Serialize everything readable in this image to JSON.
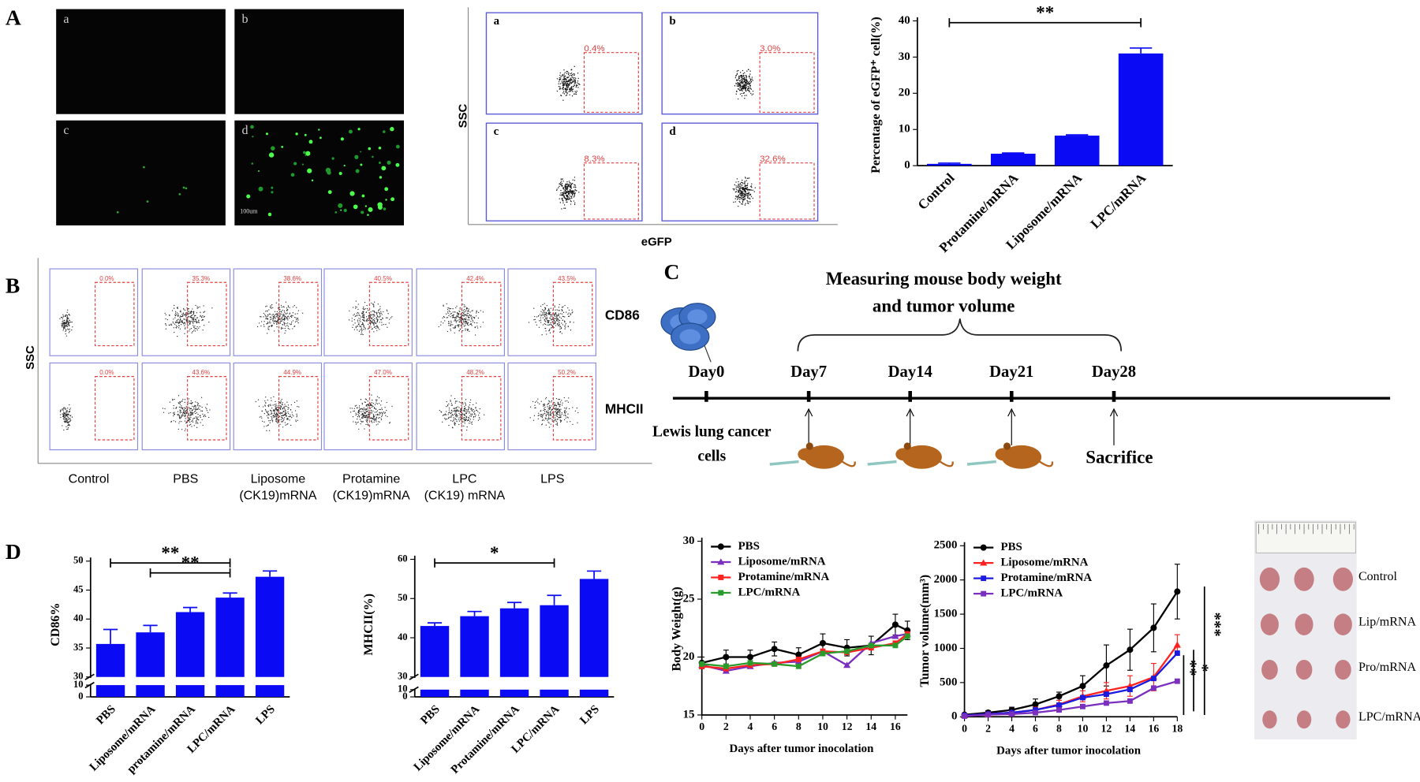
{
  "panel_labels": [
    "A",
    "B",
    "C",
    "D"
  ],
  "panel_a": {
    "micrograph_labels": [
      "a",
      "b",
      "c",
      "d"
    ],
    "scale_bar": "100um",
    "flow_labels": [
      "a",
      "b",
      "c",
      "d"
    ],
    "flow_percentages": [
      "0.4%",
      "3.0%",
      "8.3%",
      "32.6%"
    ],
    "flow_y_label": "SSC",
    "flow_x_label": "eGFP"
  },
  "panel_b": {
    "row_labels": [
      "CD86",
      "MHCII"
    ],
    "y_label": "SSC",
    "column_labels": [
      [
        "Control"
      ],
      [
        "PBS"
      ],
      [
        "Liposome",
        "(CK19)mRNA"
      ],
      [
        "Protamine",
        "(CK19)mRNA"
      ],
      [
        "LPC",
        "(CK19) mRNA"
      ],
      [
        "LPS"
      ]
    ],
    "percentages": [
      [
        "0.0%",
        "35.3%",
        "38.6%",
        "40.5%",
        "42.4%",
        "43.5%"
      ],
      [
        "0.0%",
        "43.6%",
        "44.9%",
        "47.0%",
        "48.2%",
        "50.2%"
      ]
    ]
  },
  "panel_c": {
    "title": [
      "Measuring mouse body weight",
      "and tumor volume"
    ],
    "days": [
      "Day0",
      "Day7",
      "Day14",
      "Day21",
      "Day28"
    ],
    "cells_label": [
      "Lewis lung cancer",
      "cells"
    ],
    "end_label": "Sacrifice"
  },
  "photo": {
    "row_labels": [
      "Control",
      "Lip/mRNA",
      "Pro/mRNA",
      "LPC/mRNA"
    ]
  },
  "chart_data": [
    {
      "type": "bar",
      "y_label": "Percentage of eGFP⁺ cell(%)",
      "categories": [
        "Control",
        "Protamine/mRNA",
        "Liposome/mRNA",
        "LPC/mRNA"
      ],
      "values": [
        0.5,
        3.3,
        8.3,
        31
      ],
      "errors": [
        0.2,
        0.2,
        0.2,
        1.5
      ],
      "color": "#0a0af5",
      "ylim": [
        0,
        40
      ],
      "yticks": [
        0,
        10,
        20,
        30,
        40
      ],
      "significance": [
        {
          "label": "**",
          "between": [
            "Control",
            "LPC/mRNA"
          ]
        }
      ]
    },
    {
      "type": "bar",
      "y_label": "CD86%",
      "categories": [
        "PBS",
        "Liposome/mRNA",
        "protamine/mRNA",
        "LPC/mRNA",
        "LPS"
      ],
      "values": [
        35.7,
        37.7,
        41.2,
        43.7,
        47.3
      ],
      "errors": [
        2.5,
        1.2,
        0.8,
        0.8,
        1
      ],
      "color": "#0a0af5",
      "ylim": [
        0,
        50
      ],
      "axis_break": [
        10,
        30
      ],
      "yticks": [
        0,
        10,
        30,
        35,
        40,
        45,
        50
      ],
      "significance": [
        {
          "label": "**",
          "between": [
            "PBS",
            "LPC/mRNA"
          ]
        },
        {
          "label": "**",
          "between": [
            "Liposome/mRNA",
            "LPC/mRNA"
          ]
        }
      ]
    },
    {
      "type": "bar",
      "y_label": "MHCII(%)",
      "categories": [
        "PBS",
        "Liposome/mRNA",
        "Protamine/mRNA",
        "LPC/mRNA",
        "LPS"
      ],
      "values": [
        43,
        45.5,
        47.5,
        48.3,
        55
      ],
      "errors": [
        0.8,
        1.2,
        1.5,
        2.5,
        2
      ],
      "color": "#0a0af5",
      "ylim": [
        0,
        60
      ],
      "axis_break": [
        10,
        30
      ],
      "yticks": [
        0,
        10,
        30,
        40,
        50,
        60
      ],
      "significance": [
        {
          "label": "*",
          "between": [
            "PBS",
            "LPC/mRNA"
          ]
        }
      ]
    },
    {
      "type": "line",
      "y_label": "Body Weight(g)",
      "x_label": "Days after tumor inocolation",
      "x": [
        0,
        2,
        4,
        6,
        8,
        10,
        12,
        14,
        16,
        17
      ],
      "xlim": [
        0,
        17
      ],
      "xticks": [
        0,
        2,
        4,
        6,
        8,
        10,
        12,
        14,
        16
      ],
      "ylim": [
        15,
        30
      ],
      "yticks": [
        15,
        20,
        25,
        30
      ],
      "series": [
        {
          "name": "PBS",
          "color": "#000000",
          "values": [
            19.5,
            20,
            20,
            20.7,
            20.2,
            21.2,
            20.8,
            21,
            22.8,
            22.3
          ],
          "errors": [
            0.5,
            0.6,
            0.6,
            0.6,
            0.6,
            0.8,
            0.7,
            0.8,
            0.9,
            0.8
          ]
        },
        {
          "name": "Liposome/mRNA",
          "color": "#7b2fbe",
          "values": [
            19.3,
            18.8,
            19.2,
            19.5,
            19.6,
            20.5,
            19.3,
            21.2,
            21.8,
            22
          ]
        },
        {
          "name": "Protamine/mRNA",
          "color": "#ff2020",
          "values": [
            19.2,
            19,
            19.3,
            19.4,
            19.8,
            20.5,
            20.4,
            20.8,
            21.2,
            22
          ]
        },
        {
          "name": "LPC/mRNA",
          "color": "#2a9a2a",
          "values": [
            19.4,
            19.2,
            19.5,
            19.4,
            19.2,
            20.3,
            20.5,
            21,
            21,
            21.8
          ]
        }
      ]
    },
    {
      "type": "line",
      "y_label": "Tumor volume(mm³)",
      "x_label": "Days after tumor inocolation",
      "x": [
        0,
        2,
        4,
        6,
        8,
        10,
        12,
        14,
        16,
        18
      ],
      "xlim": [
        0,
        18
      ],
      "xticks": [
        0,
        2,
        4,
        6,
        8,
        10,
        12,
        14,
        16,
        18
      ],
      "ylim": [
        0,
        2500
      ],
      "yticks": [
        0,
        500,
        1000,
        1500,
        2000,
        2500
      ],
      "series": [
        {
          "name": "PBS",
          "color": "#000000",
          "values": [
            30,
            60,
            100,
            180,
            300,
            450,
            750,
            980,
            1300,
            1830
          ],
          "errors": [
            20,
            30,
            40,
            80,
            60,
            150,
            300,
            300,
            350,
            400
          ]
        },
        {
          "name": "Liposome/mRNA",
          "color": "#ff2020",
          "values": [
            20,
            40,
            60,
            100,
            180,
            300,
            380,
            450,
            580,
            1050
          ],
          "errors": [
            10,
            20,
            30,
            40,
            60,
            80,
            120,
            150,
            200,
            150
          ]
        },
        {
          "name": "Protamine/mRNA",
          "color": "#1a1ae0",
          "values": [
            20,
            40,
            60,
            100,
            170,
            280,
            330,
            400,
            560,
            930
          ]
        },
        {
          "name": "LPC/mRNA",
          "color": "#7b2fbe",
          "values": [
            10,
            30,
            40,
            60,
            100,
            150,
            200,
            230,
            420,
            520
          ]
        }
      ],
      "significance_labels": [
        "***",
        "*",
        "**"
      ]
    }
  ]
}
